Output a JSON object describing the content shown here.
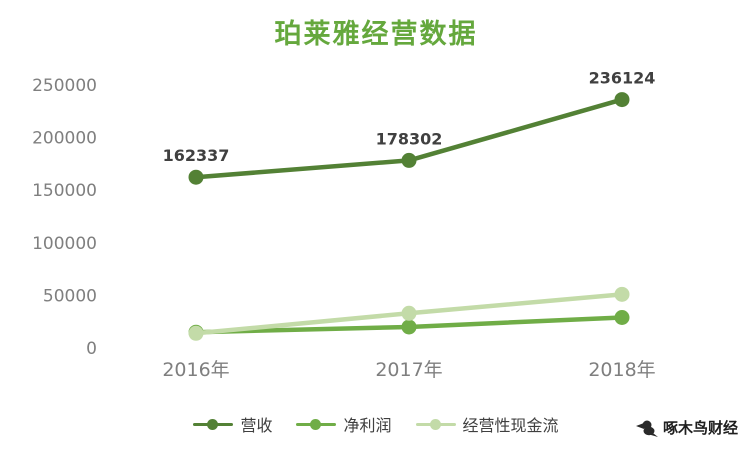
{
  "watermark": {
    "text": "啄木鸟财经"
  },
  "chart_data": {
    "type": "line",
    "title": "珀莱雅经营数据",
    "categories": [
      "2016年",
      "2017年",
      "2018年"
    ],
    "series": [
      {
        "name": "营收",
        "values": [
          162337,
          178302,
          236124
        ],
        "labels": [
          "162337",
          "178302",
          "236124"
        ],
        "color": "#538135"
      },
      {
        "name": "净利润",
        "values": [
          15000,
          20000,
          29000
        ],
        "color": "#70ad47"
      },
      {
        "name": "经营性现金流",
        "values": [
          14000,
          33000,
          51000
        ],
        "color": "#c3dba8"
      }
    ],
    "ylim": [
      0,
      250000
    ],
    "yticks": [
      0,
      50000,
      100000,
      150000,
      200000,
      250000
    ],
    "xlabel": "",
    "ylabel": "",
    "grid": false,
    "legend_position": "bottom",
    "colors": {
      "title": "#65a83d",
      "axis_text": "#7f7f7f",
      "data_label": "#404040"
    }
  }
}
